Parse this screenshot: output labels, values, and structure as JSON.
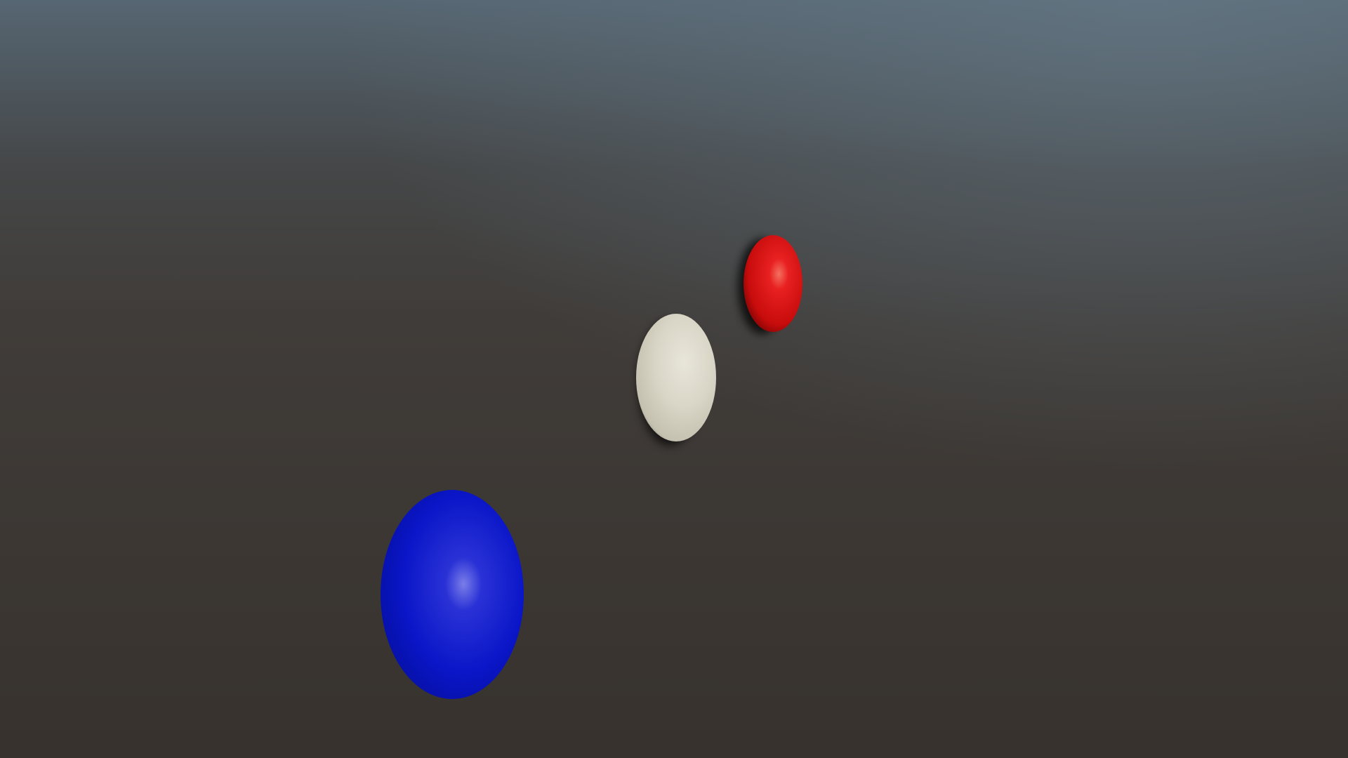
{
  "scene": {
    "sky_top_color": "#566672",
    "sky_mid_color": "#454748",
    "ground_color": "#37322d",
    "ground_far_color": "#403c39"
  },
  "objects": [
    {
      "name": "red-ellipsoid",
      "color": "#e01515",
      "shadow_color": "#000000"
    },
    {
      "name": "white-ellipsoid",
      "color": "#d8d5c6",
      "shadow_color": "#000000"
    },
    {
      "name": "blue-ellipsoid",
      "color": "#0a14d0",
      "shadow_color": "#000000"
    }
  ]
}
